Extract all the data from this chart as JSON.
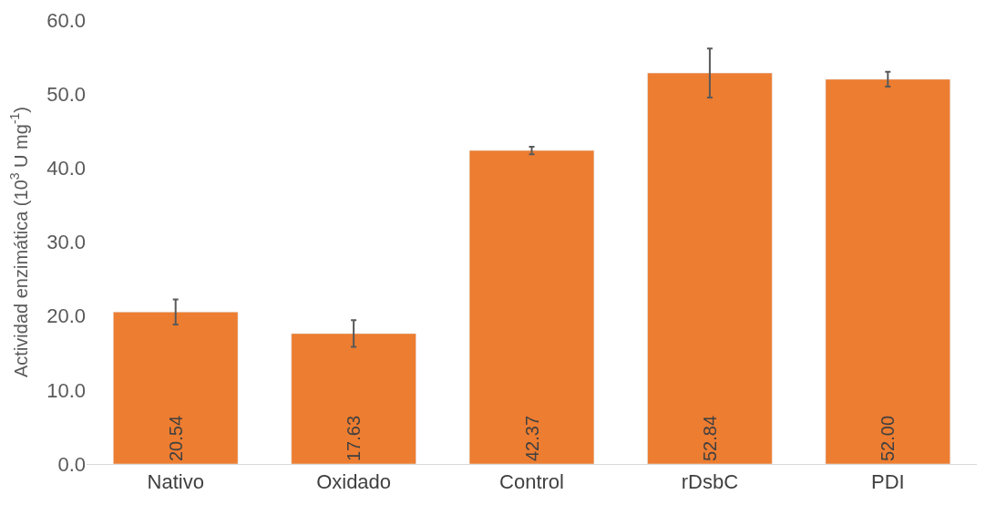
{
  "chart_data": {
    "type": "bar",
    "ylabel": "Actividad enzimática (10$^{3}$ U mg$^{-1}$)",
    "categories": [
      "Nativo",
      "Oxidado",
      "Control",
      "rDsbC",
      "PDI"
    ],
    "values": [
      20.54,
      17.63,
      42.37,
      52.84,
      52.0
    ],
    "errors": [
      1.7,
      1.8,
      0.5,
      3.3,
      1.0
    ],
    "color": "#ed7d31",
    "value_labels": [
      "20.54",
      "17.63",
      "42.37",
      "52.84",
      "52.00"
    ],
    "ylim": [
      0,
      60
    ],
    "yticks": [
      {
        "value": 0,
        "label": "0.0"
      },
      {
        "value": 10,
        "label": "10.0"
      },
      {
        "value": 20,
        "label": "20.0"
      },
      {
        "value": 30,
        "label": "30.0"
      },
      {
        "value": 40,
        "label": "40.0"
      },
      {
        "value": 50,
        "label": "50.0"
      },
      {
        "value": 60,
        "label": "60.0"
      }
    ],
    "legend": false
  }
}
